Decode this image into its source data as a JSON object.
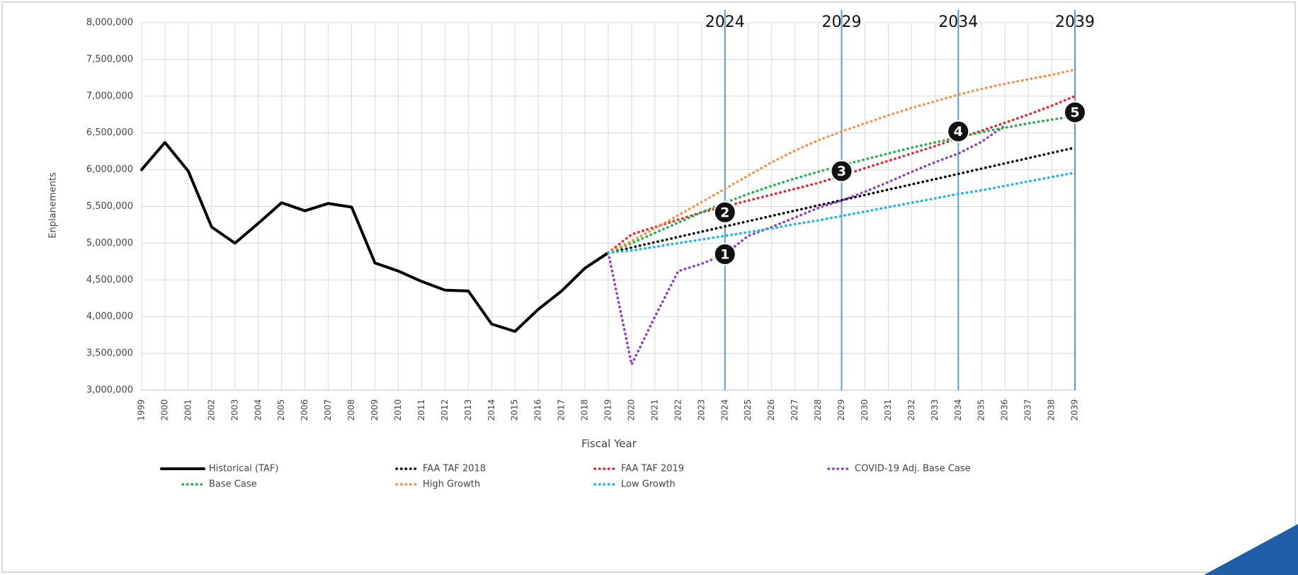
{
  "chart_data": {
    "type": "line",
    "y_label": "Enplanements",
    "x_label": "Fiscal Year",
    "x": [
      1999,
      2000,
      2001,
      2002,
      2003,
      2004,
      2005,
      2006,
      2007,
      2008,
      2009,
      2010,
      2011,
      2012,
      2013,
      2014,
      2015,
      2016,
      2017,
      2018,
      2019,
      2020,
      2021,
      2022,
      2023,
      2024,
      2025,
      2026,
      2027,
      2028,
      2029,
      2030,
      2031,
      2032,
      2033,
      2034,
      2035,
      2036,
      2037,
      2038,
      2039
    ],
    "xlim": [
      1999,
      2039
    ],
    "ylim": [
      3000000,
      8000000
    ],
    "yticks": [
      {
        "value": 3000000,
        "label": "3,000,000"
      },
      {
        "value": 3500000,
        "label": "3,500,000"
      },
      {
        "value": 4000000,
        "label": "4,000,000"
      },
      {
        "value": 4500000,
        "label": "4,500,000"
      },
      {
        "value": 5000000,
        "label": "5,000,000"
      },
      {
        "value": 5500000,
        "label": "5,500,000"
      },
      {
        "value": 6000000,
        "label": "6,000,000"
      },
      {
        "value": 6500000,
        "label": "6,500,000"
      },
      {
        "value": 7000000,
        "label": "7,000,000"
      },
      {
        "value": 7500000,
        "label": "7,500,000"
      },
      {
        "value": 8000000,
        "label": "8,000,000"
      }
    ],
    "grid": true,
    "series": [
      {
        "name": "Historical (TAF)",
        "color": "#000000",
        "style": "solid",
        "values": [
          6000000,
          6370000,
          5980000,
          5220000,
          5000000,
          5270000,
          5550000,
          5440000,
          5540000,
          5490000,
          4730000,
          4620000,
          4480000,
          4360000,
          4350000,
          3900000,
          3800000,
          4100000,
          4350000,
          4660000,
          4870000,
          null,
          null,
          null,
          null,
          null,
          null,
          null,
          null,
          null,
          null,
          null,
          null,
          null,
          null,
          null,
          null,
          null,
          null,
          null,
          null
        ]
      },
      {
        "name": "FAA TAF 2018",
        "color": "#000000",
        "style": "dotted",
        "values": [
          null,
          null,
          null,
          null,
          null,
          null,
          null,
          null,
          null,
          null,
          null,
          null,
          null,
          null,
          null,
          null,
          null,
          null,
          null,
          null,
          4870000,
          4941500,
          5013000,
          5084500,
          5156000,
          5227500,
          5299000,
          5370500,
          5442000,
          5513500,
          5585000,
          5656500,
          5728000,
          5799500,
          5871000,
          5942500,
          6014000,
          6085500,
          6157000,
          6228500,
          6300000
        ]
      },
      {
        "name": "FAA TAF 2019",
        "color": "#e8262a",
        "style": "dotted",
        "values": [
          null,
          null,
          null,
          null,
          null,
          null,
          null,
          null,
          null,
          null,
          null,
          null,
          null,
          null,
          null,
          null,
          null,
          null,
          null,
          null,
          4870000,
          5120000,
          5220000,
          5320000,
          5420000,
          5500000,
          5580000,
          5660000,
          5740000,
          5820000,
          5920000,
          6020000,
          6120000,
          6220000,
          6320000,
          6430000,
          6530000,
          6640000,
          6750000,
          6870000,
          7000000
        ]
      },
      {
        "name": "COVID-19 Adj. Base Case",
        "color": "#8b3fc4",
        "style": "dotted",
        "values": [
          null,
          null,
          null,
          null,
          null,
          null,
          null,
          null,
          null,
          null,
          null,
          null,
          null,
          null,
          null,
          null,
          null,
          null,
          null,
          null,
          4870000,
          3350000,
          4000000,
          4620000,
          4720000,
          4850000,
          5100000,
          5220000,
          5350000,
          5480000,
          5580000,
          5700000,
          5830000,
          5970000,
          6100000,
          6220000,
          6380000,
          6600000,
          null,
          null,
          null
        ]
      },
      {
        "name": "Base Case",
        "color": "#22b24c",
        "style": "dotted",
        "values": [
          null,
          null,
          null,
          null,
          null,
          null,
          null,
          null,
          null,
          null,
          null,
          null,
          null,
          null,
          null,
          null,
          null,
          null,
          null,
          null,
          4870000,
          5000000,
          5140000,
          5280000,
          5420000,
          5550000,
          5670000,
          5780000,
          5880000,
          5970000,
          6060000,
          6140000,
          6220000,
          6300000,
          6370000,
          6440000,
          6510000,
          6570000,
          6630000,
          6680000,
          6730000
        ]
      },
      {
        "name": "High Growth",
        "color": "#f4924a",
        "style": "dotted",
        "values": [
          null,
          null,
          null,
          null,
          null,
          null,
          null,
          null,
          null,
          null,
          null,
          null,
          null,
          null,
          null,
          null,
          null,
          null,
          null,
          null,
          4870000,
          5030000,
          5200000,
          5380000,
          5560000,
          5740000,
          5920000,
          6100000,
          6260000,
          6400000,
          6520000,
          6630000,
          6740000,
          6840000,
          6930000,
          7020000,
          7100000,
          7170000,
          7230000,
          7290000,
          7360000
        ]
      },
      {
        "name": "Low Growth",
        "color": "#1fb5ea",
        "style": "dotted",
        "values": [
          null,
          null,
          null,
          null,
          null,
          null,
          null,
          null,
          null,
          null,
          null,
          null,
          null,
          null,
          null,
          null,
          null,
          null,
          null,
          null,
          4870000,
          4900000,
          4950000,
          5000000,
          5050000,
          5100000,
          5150000,
          5200000,
          5260000,
          5310000,
          5370000,
          5430000,
          5490000,
          5550000,
          5610000,
          5670000,
          5720000,
          5780000,
          5840000,
          5900000,
          5960000
        ]
      }
    ],
    "vlines": [
      2024,
      2029,
      2034,
      2039
    ],
    "vline_color": "#5b9bd5",
    "markers": [
      {
        "label": "1",
        "x": 2024,
        "y": 4850000
      },
      {
        "label": "2",
        "x": 2024,
        "y": 5420000
      },
      {
        "label": "3",
        "x": 2029,
        "y": 5980000
      },
      {
        "label": "4",
        "x": 2034,
        "y": 6520000
      },
      {
        "label": "5",
        "x": 2039,
        "y": 6780000
      }
    ]
  }
}
